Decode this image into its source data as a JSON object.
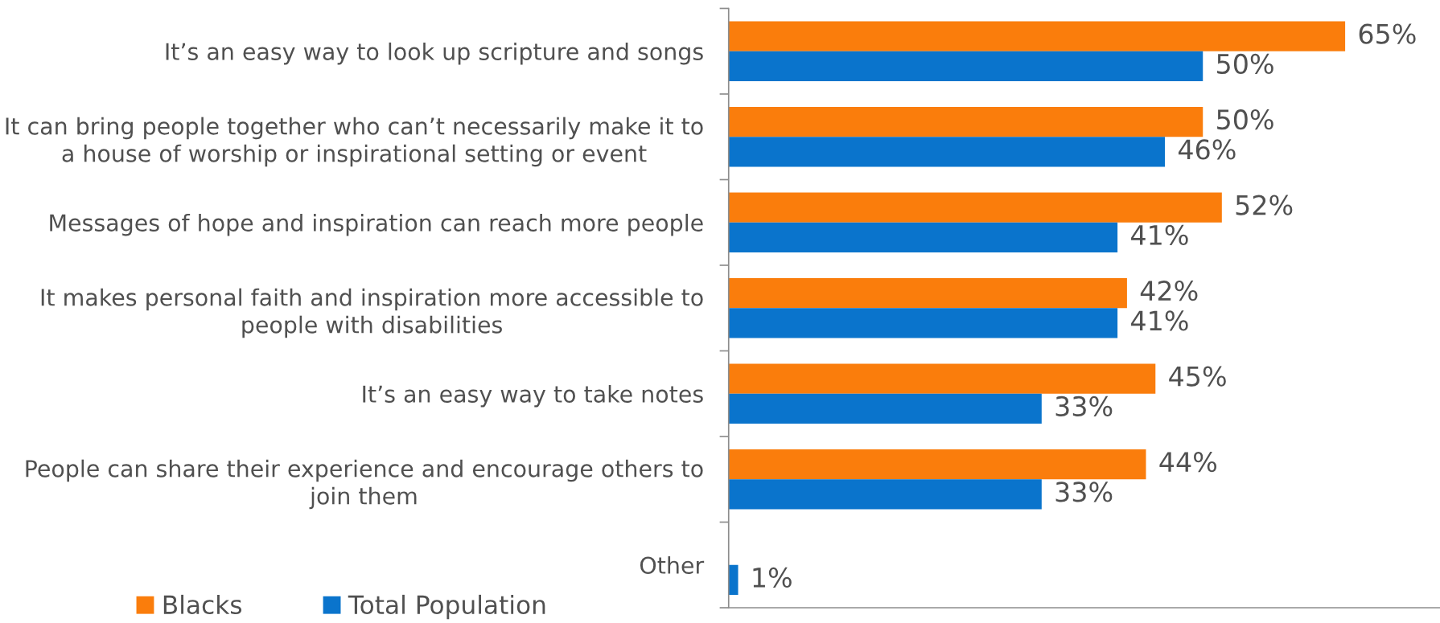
{
  "chart_data": {
    "type": "bar",
    "orientation": "horizontal",
    "categories": [
      "It’s an easy way to look up scripture and songs",
      "It can bring people together who can’t necessarily make it to\na house of worship or inspirational setting or event",
      "Messages of hope and inspiration can reach more people",
      "It makes personal faith and inspiration more accessible to\npeople with disabilities",
      "It’s an easy way to take notes",
      "People can share their experience and encourage others to\njoin them",
      "Other"
    ],
    "series": [
      {
        "name": "Blacks",
        "color": "#fa7d0c",
        "values": [
          65,
          50,
          52,
          42,
          45,
          44,
          null
        ],
        "value_labels": [
          "65%",
          "50%",
          "52%",
          "42%",
          "45%",
          "44%",
          null
        ]
      },
      {
        "name": "Total Population",
        "color": "#0a74cc",
        "values": [
          50,
          46,
          41,
          41,
          33,
          33,
          1
        ],
        "value_labels": [
          "50%",
          "46%",
          "41%",
          "41%",
          "33%",
          "33%",
          "1%"
        ]
      }
    ],
    "xlim": [
      0,
      75
    ],
    "tick_labels": "y",
    "grid": false,
    "legend": "bottom left"
  }
}
